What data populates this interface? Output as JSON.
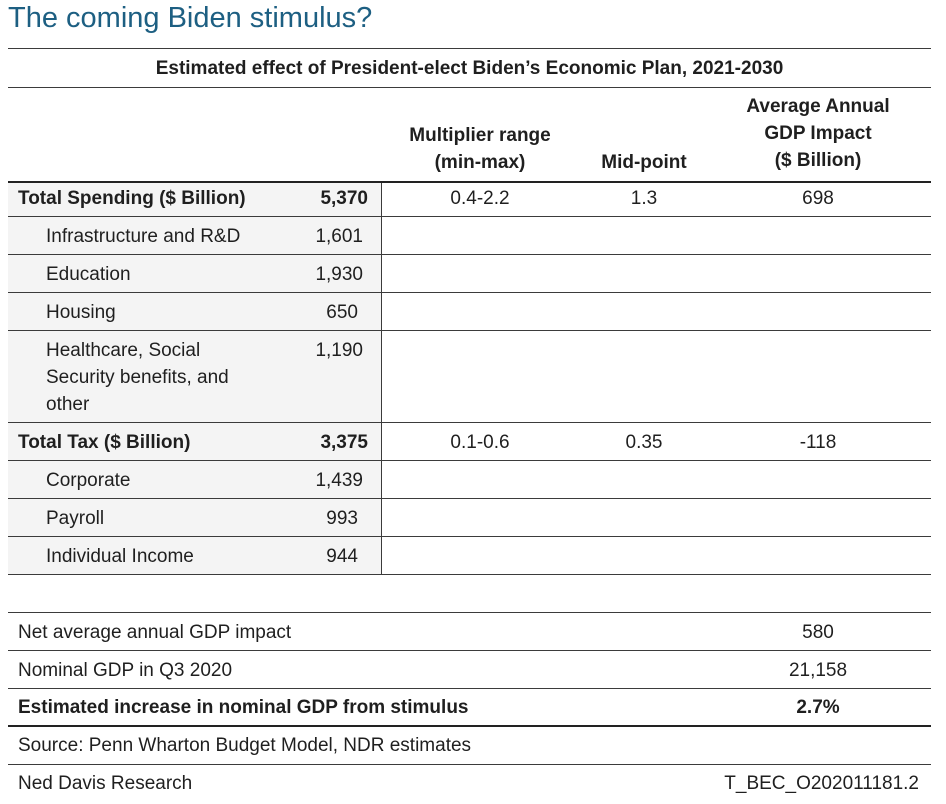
{
  "title": "The coming Biden stimulus?",
  "table_title": "Estimated effect of President-elect Biden’s Economic Plan, 2021-2030",
  "column_headers": {
    "multiplier": [
      "Multiplier range",
      "(min-max)"
    ],
    "midpoint": "Mid-point",
    "gdp_impact": [
      "Average Annual",
      "GDP Impact",
      "($ Billion)"
    ]
  },
  "spending": {
    "label": "Total Spending ($ Billion)",
    "value": "5,370",
    "multiplier": "0.4-2.2",
    "midpoint": "1.3",
    "impact": "698",
    "items": [
      {
        "label": "Infrastructure and R&D",
        "value": "1,601"
      },
      {
        "label": "Education",
        "value": "1,930"
      },
      {
        "label": "Housing",
        "value": "650"
      },
      {
        "label_lines": [
          "Healthcare, Social",
          "Security benefits, and",
          "other"
        ],
        "value": "1,190"
      }
    ]
  },
  "tax": {
    "label": "Total Tax ($ Billion)",
    "value": "3,375",
    "multiplier": "0.1-0.6",
    "midpoint": "0.35",
    "impact": "-118",
    "items": [
      {
        "label": "Corporate",
        "value": "1,439"
      },
      {
        "label": "Payroll",
        "value": "993"
      },
      {
        "label": "Individual Income",
        "value": "944"
      }
    ]
  },
  "summary": [
    {
      "label": "Net average annual GDP impact",
      "value": "580"
    },
    {
      "label": "Nominal GDP in Q3 2020",
      "value": "21,158"
    },
    {
      "label": "Estimated increase in nominal GDP from stimulus",
      "value": "2.7%"
    }
  ],
  "source": "Source: Penn Wharton Budget Model, NDR estimates",
  "footer": {
    "left": "Ned Davis Research",
    "right": "T_BEC_O202011181.2"
  },
  "colors": {
    "title": "#1d5f82",
    "row_shade": "#f4f4f4",
    "rule": "#3b3b3b"
  }
}
